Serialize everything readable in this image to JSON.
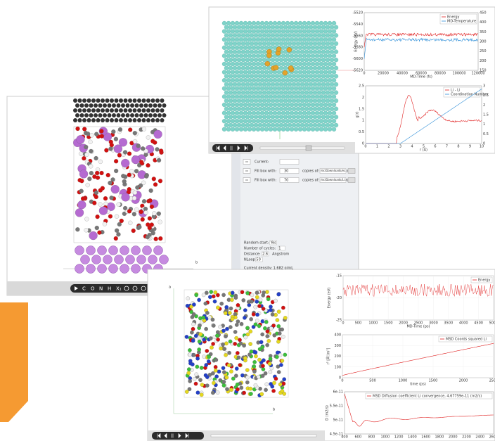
{
  "structure_window": {
    "toolbar_labels": [
      "C",
      "O",
      "N",
      "H",
      "X₁"
    ],
    "axis_label": "b"
  },
  "md_window": {
    "energy_chart": {
      "legend": [
        "Energy",
        "MD-Temperature"
      ],
      "y_label": "Energy (eV)",
      "x_label": "MD-Time (fs)",
      "yticks": [
        -5620,
        -5600,
        -5580,
        -5560,
        -5540,
        -5520
      ],
      "y2ticks": [
        150,
        200,
        250,
        300,
        350,
        400,
        450
      ],
      "xticks": [
        0,
        20000,
        40000,
        60000,
        80000,
        100000,
        120000
      ]
    },
    "rdf_chart": {
      "legend": [
        "Li - Li",
        "Coordination Number"
      ],
      "y_label": "g(r)",
      "x_label": "r (Å)",
      "yticks": [
        0,
        0.5,
        1,
        1.5,
        2,
        2.5
      ],
      "y2ticks": [
        0,
        0.5,
        1,
        1.5,
        2,
        2.5,
        3
      ],
      "xticks": [
        0,
        1,
        2,
        3,
        4,
        5,
        6,
        7,
        8,
        9,
        10
      ]
    }
  },
  "settings_panel": {
    "rows": [
      {
        "label": "Current:"
      },
      {
        "label": "Fill box with:",
        "count": "30",
        "copies_label": "copies of:",
        "file": "/ec/Downloads/ec.xyz"
      },
      {
        "label": "Fill box with:",
        "count": "70",
        "copies_label": "copies of:",
        "file": "/ec/Downloads/Li.xyz"
      }
    ],
    "options": [
      {
        "label": "Random start:",
        "value": "Yes"
      },
      {
        "label": "Number of cycles:",
        "value": "1"
      },
      {
        "label": "Distance:",
        "value": "2.6",
        "unit": "Angstrom"
      },
      {
        "label": "NLoop:",
        "value": "50"
      }
    ],
    "density": "Current density: 1.682 g/mL"
  },
  "analysis_window": {
    "axis_labels": [
      "a",
      "b"
    ],
    "energy_chart": {
      "legend": [
        "Energy"
      ],
      "y_label": "Energy (eV)",
      "x_label": "MD-Time (ps)",
      "yticks": [
        -25,
        -20,
        -15
      ],
      "xticks": [
        0,
        500,
        1000,
        1500,
        2000,
        2500,
        3000,
        3500,
        4000,
        4500,
        5000
      ]
    },
    "msd_chart": {
      "legend": [
        "MSD Coords squared Li"
      ],
      "y_label": "r² [Å²/m²]",
      "x_label": "time (ps)",
      "yticks": [
        0,
        100,
        200,
        300,
        400
      ],
      "xticks": [
        0,
        500,
        1000,
        1500,
        2000,
        2500
      ]
    },
    "diffusion_chart": {
      "legend": [
        "MSD Diffusion coefficient Li convergence, 4.67759e-11 (m2/s)"
      ],
      "y_label": "D (m2/s)",
      "yticks": [
        4.5e-11,
        5e-11,
        5.5e-11,
        6e-11
      ],
      "xticks": [
        400,
        600,
        800,
        1000,
        1200,
        1400,
        1600,
        1800,
        2000,
        2200,
        2400,
        2600
      ]
    }
  }
}
